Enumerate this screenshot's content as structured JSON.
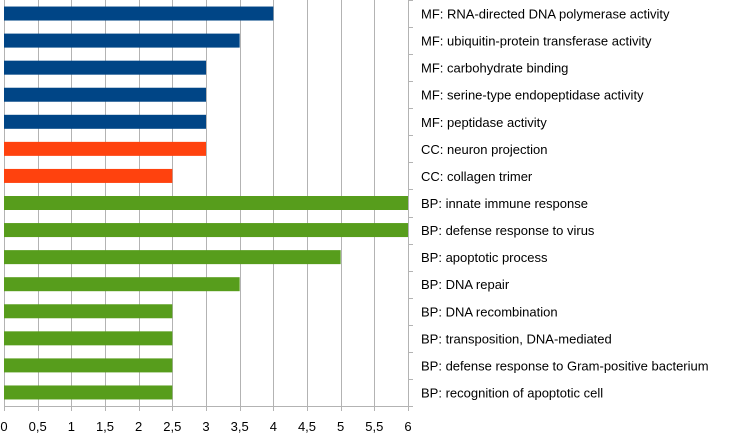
{
  "chart_data": {
    "type": "bar",
    "orientation": "horizontal",
    "categories": [
      "MF: RNA-directed DNA polymerase activity",
      "MF: ubiquitin-protein transferase activity",
      "MF: carbohydrate binding",
      "MF: serine-type endopeptidase activity",
      "MF: peptidase activity",
      "CC: neuron projection",
      "CC: collagen trimer",
      "BP: innate immune response",
      "BP: defense response to virus",
      "BP: apoptotic process",
      "BP: DNA repair",
      "BP: DNA recombination",
      "BP: transposition, DNA-mediated",
      "BP: defense response to Gram-positive bacterium",
      "BP: recognition of apoptotic cell"
    ],
    "values": [
      4,
      3.5,
      3,
      3,
      3,
      3,
      2.5,
      6,
      6,
      5,
      3.5,
      2.5,
      2.5,
      2.5,
      2.5
    ],
    "groups": [
      "MF",
      "MF",
      "MF",
      "MF",
      "MF",
      "CC",
      "CC",
      "BP",
      "BP",
      "BP",
      "BP",
      "BP",
      "BP",
      "BP",
      "BP"
    ],
    "group_colors": {
      "MF": "#004586",
      "CC": "#ff420e",
      "BP": "#579d1c"
    },
    "xlim": [
      0,
      6
    ],
    "x_ticks": [
      "0",
      "0,5",
      "1",
      "1,5",
      "2",
      "2,5",
      "3",
      "3,5",
      "4",
      "4,5",
      "5",
      "5,5",
      "6"
    ],
    "grid": true,
    "legend": "none",
    "title": "",
    "xlabel": "",
    "ylabel": ""
  }
}
